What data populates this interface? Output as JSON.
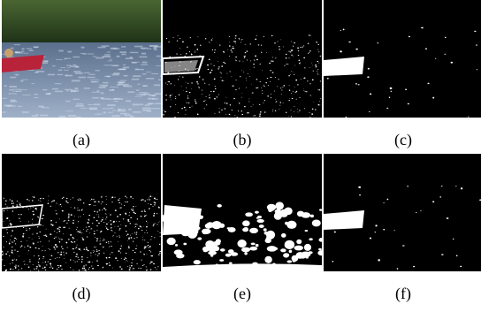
{
  "figure": {
    "panels": [
      {
        "label": "(a)",
        "content": "photo of red canoe with paddler on a river, tree-lined bank"
      },
      {
        "label": "(b)",
        "content": "binary mask: noisy speckle, canoe outline"
      },
      {
        "label": "(c)",
        "content": "binary mask: clean canoe, sparse dots"
      },
      {
        "label": "(d)",
        "content": "binary edges: dense speckle across water"
      },
      {
        "label": "(e)",
        "content": "binary mask: large white blobs over water"
      },
      {
        "label": "(f)",
        "content": "binary mask: clean canoe, sparse dots"
      }
    ]
  },
  "colors": {
    "background": "#ffffff",
    "mask_fg": "#ffffff",
    "mask_bg": "#000000",
    "trees": "#2f4a22",
    "water": "#7d8fae",
    "canoe": "#b8233a"
  }
}
